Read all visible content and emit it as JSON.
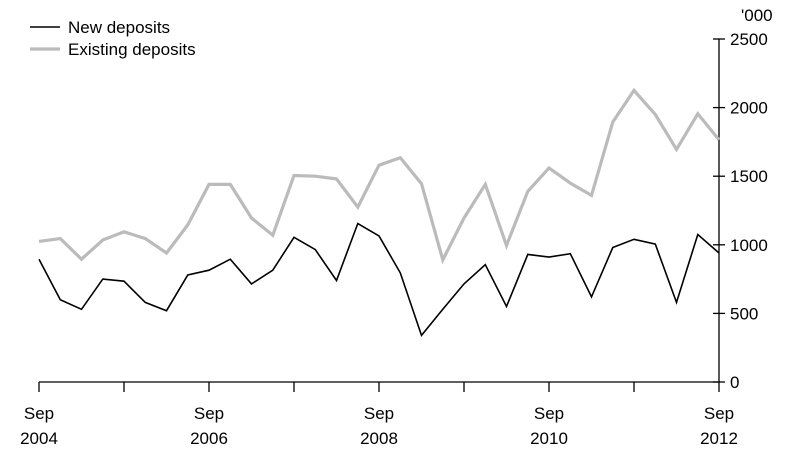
{
  "chart_data": {
    "type": "line",
    "title": "",
    "xlabel": "",
    "ylabel": "'000",
    "ylim": [
      0,
      2500
    ],
    "y_ticks": [
      0,
      500,
      1000,
      1500,
      2000,
      2500
    ],
    "y_axis_side": "right",
    "grid": false,
    "legend_position": "top-left",
    "x_tick_labels": [
      {
        "top": "Sep",
        "bottom": "2004"
      },
      {
        "top": "Sep",
        "bottom": "2006"
      },
      {
        "top": "Sep",
        "bottom": "2008"
      },
      {
        "top": "Sep",
        "bottom": "2010"
      },
      {
        "top": "Sep",
        "bottom": "2012"
      }
    ],
    "x": [
      "Sep 2004",
      "Dec 2004",
      "Mar 2005",
      "Jun 2005",
      "Sep 2005",
      "Dec 2005",
      "Mar 2006",
      "Jun 2006",
      "Sep 2006",
      "Dec 2006",
      "Mar 2007",
      "Jun 2007",
      "Sep 2007",
      "Dec 2007",
      "Mar 2008",
      "Jun 2008",
      "Sep 2008",
      "Dec 2008",
      "Mar 2009",
      "Jun 2009",
      "Sep 2009",
      "Dec 2009",
      "Mar 2010",
      "Jun 2010",
      "Sep 2010",
      "Dec 2010",
      "Mar 2011",
      "Jun 2011",
      "Sep 2011",
      "Dec 2011",
      "Mar 2012",
      "Jun 2012",
      "Sep 2012"
    ],
    "series": [
      {
        "name": "New deposits",
        "color": "#000000",
        "values": [
          895,
          600,
          530,
          750,
          735,
          580,
          520,
          780,
          815,
          895,
          715,
          815,
          1055,
          965,
          740,
          1155,
          1065,
          795,
          340,
          530,
          715,
          855,
          550,
          930,
          910,
          935,
          620,
          980,
          1040,
          1005,
          580,
          1075,
          940
        ]
      },
      {
        "name": "Existing deposits",
        "color": "#bbbbbb",
        "values": [
          1025,
          1045,
          895,
          1035,
          1095,
          1045,
          940,
          1145,
          1440,
          1440,
          1195,
          1070,
          1505,
          1500,
          1480,
          1275,
          1580,
          1635,
          1445,
          890,
          1195,
          1440,
          995,
          1390,
          1560,
          1450,
          1360,
          1895,
          2125,
          1950,
          1695,
          1955,
          1765
        ]
      }
    ]
  }
}
